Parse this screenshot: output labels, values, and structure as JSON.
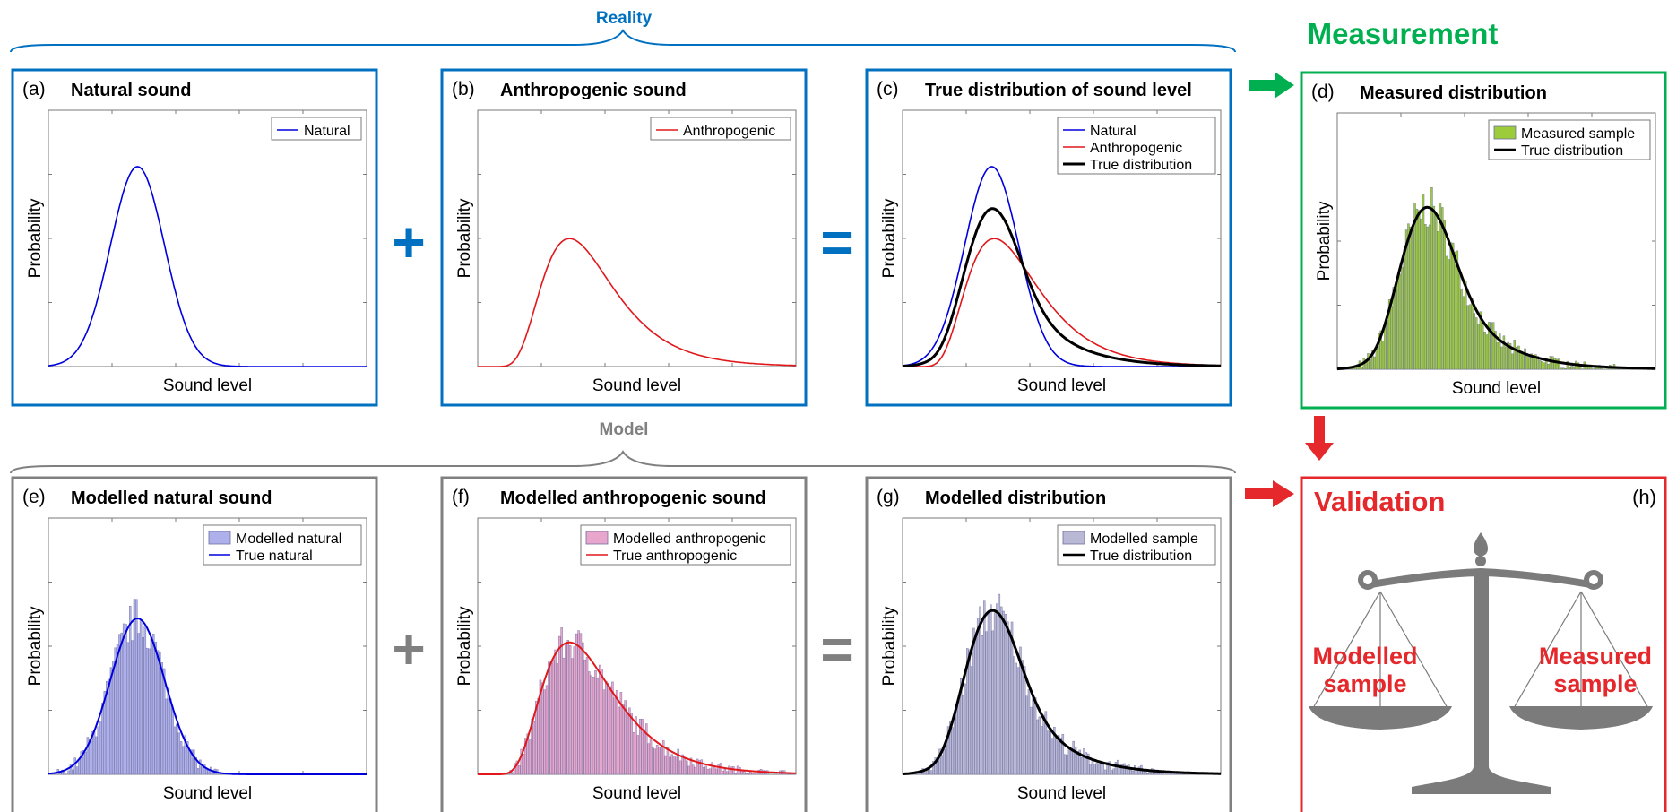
{
  "colors": {
    "reality": "#0070c0",
    "measurement": "#00b050",
    "model": "#808080",
    "validation": "#e4282b",
    "natural": "#0000dd",
    "anthropogenic": "#e0181b",
    "true_dist": "#000000",
    "measured_fill": "#9ccc3a",
    "natural_fill": "#aeb0ec",
    "anthro_fill": "#e9a6cc",
    "sample_fill": "#b9b9d6",
    "scale": "#7b7b7b"
  },
  "reality_label": "Reality",
  "model_label": "Model",
  "measurement_title": "Measurement",
  "operators": {
    "plus": "+",
    "equals": "="
  },
  "common": {
    "xlabel": "Sound level",
    "ylabel": "Probability"
  },
  "panels": {
    "a": {
      "tag": "(a)",
      "title": "Natural sound",
      "legend": [
        "Natural"
      ]
    },
    "b": {
      "tag": "(b)",
      "title": "Anthropogenic sound",
      "legend": [
        "Anthropogenic"
      ]
    },
    "c": {
      "tag": "(c)",
      "title": "True distribution of sound level",
      "legend": [
        "Natural",
        "Anthropogenic",
        "True distribution"
      ]
    },
    "d": {
      "tag": "(d)",
      "title": "Measured distribution",
      "legend": [
        "Measured sample",
        "True distribution"
      ]
    },
    "e": {
      "tag": "(e)",
      "title": "Modelled natural sound",
      "legend": [
        "Modelled natural",
        "True natural"
      ]
    },
    "f": {
      "tag": "(f)",
      "title": "Modelled anthropogenic sound",
      "legend": [
        "Modelled anthropogenic",
        "True anthropogenic"
      ]
    },
    "g": {
      "tag": "(g)",
      "title": "Modelled distribution",
      "legend": [
        "Modelled sample",
        "True distribution"
      ]
    }
  },
  "validation": {
    "tag": "(h)",
    "title": "Validation",
    "left_pan_label": [
      "Modelled",
      "sample"
    ],
    "right_pan_label": [
      "Measured",
      "sample"
    ]
  }
}
